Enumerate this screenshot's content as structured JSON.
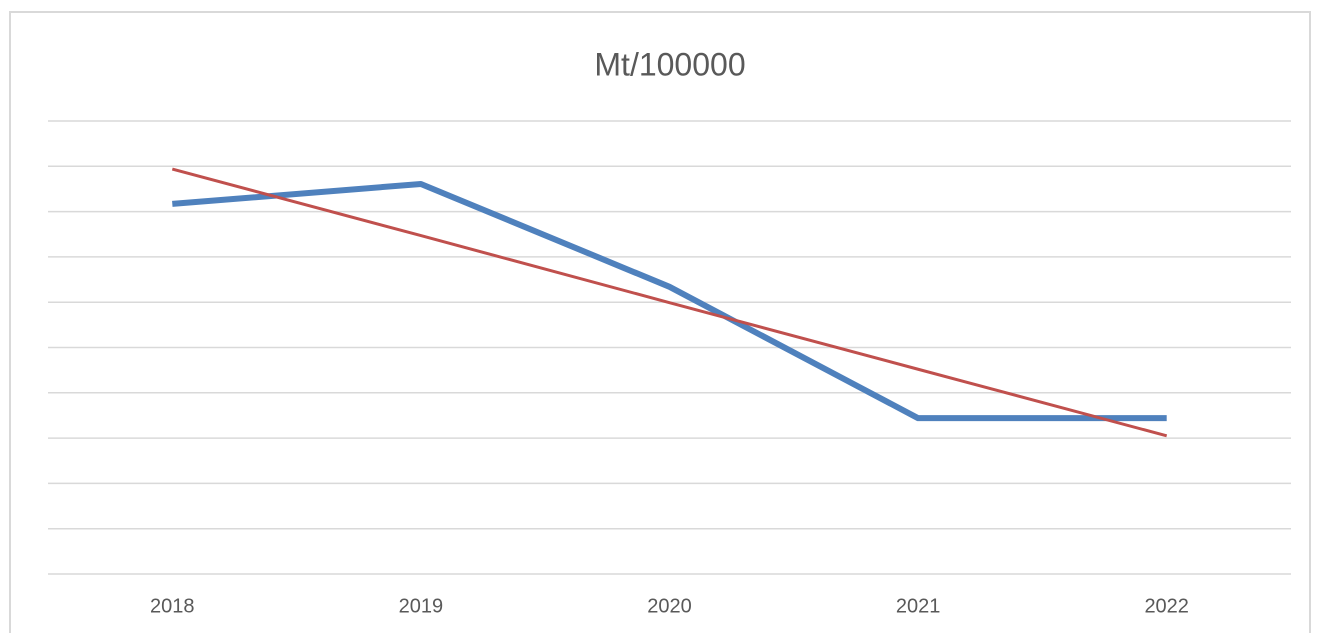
{
  "chart_data": {
    "type": "line",
    "title": "Mt/100000",
    "categories": [
      "2018",
      "2019",
      "2020",
      "2021",
      "2022"
    ],
    "series": [
      {
        "color": "#4f81bd",
        "values": [
          8.17,
          8.61,
          6.34,
          3.44,
          3.44
        ]
      },
      {
        "color": "#c0504d",
        "values": [
          8.94,
          7.47,
          5.99,
          4.52,
          3.05
        ]
      }
    ],
    "ylim": [
      0,
      10
    ],
    "yticks": [
      0,
      1,
      2,
      3,
      4,
      5,
      6,
      7,
      8,
      9,
      10
    ],
    "grid": true
  }
}
